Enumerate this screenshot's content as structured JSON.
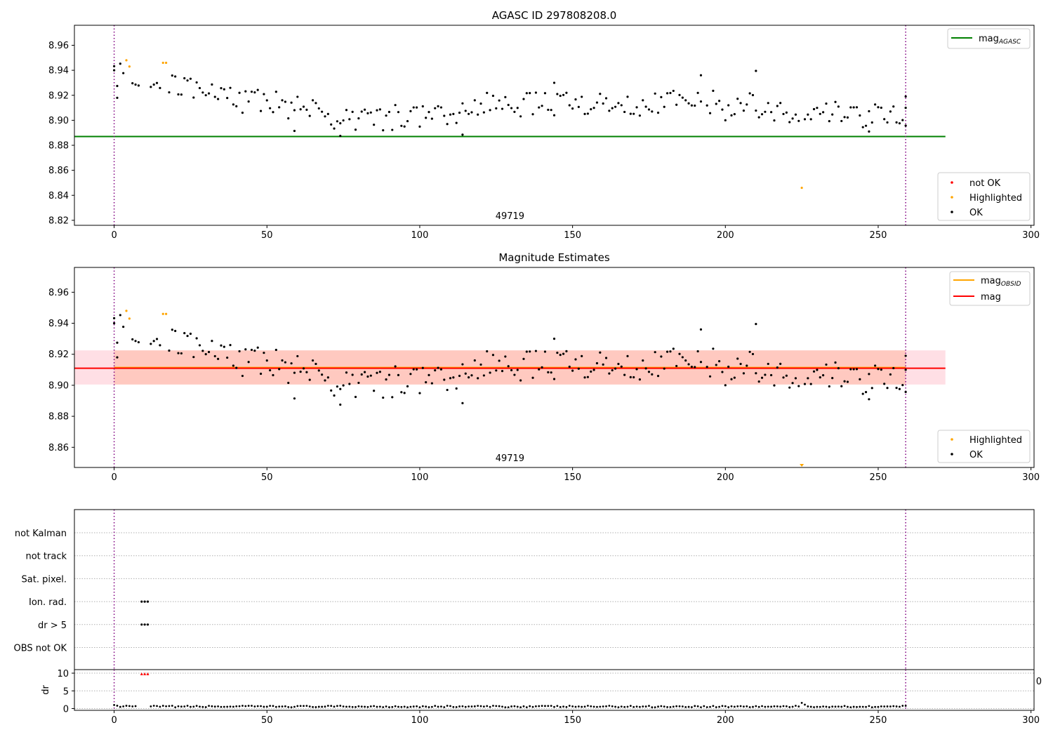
{
  "figure": {
    "title": "AGASC ID 297808208.0",
    "obsid_label": "49719",
    "cut_label": "0"
  },
  "colors": {
    "ok": "#000000",
    "highlighted": "#ffa500",
    "not_ok": "#ff0000",
    "mag_agasc": "#008000",
    "mag_obsid": "#ffa500",
    "mag": "#ff0000",
    "mag_band": "#ffc0cb",
    "obsid_band": "#ffa07a",
    "boundary": "#800080"
  },
  "chart_data": [
    {
      "type": "scatter",
      "panel": "agasc",
      "title": "AGASC ID 297808208.0",
      "xlim": [
        -13,
        301
      ],
      "ylim": [
        8.816,
        8.976
      ],
      "xticks": [
        0,
        50,
        100,
        150,
        200,
        250,
        300
      ],
      "yticks": [
        8.82,
        8.84,
        8.86,
        8.88,
        8.9,
        8.92,
        8.94,
        8.96
      ],
      "grid": false,
      "legend_lines": [
        {
          "label": "mag",
          "sub": "AGASC",
          "color": "#008000"
        }
      ],
      "legend_points": [
        {
          "label": "not OK",
          "color": "#ff0000"
        },
        {
          "label": "Highlighted",
          "color": "#ffa500"
        },
        {
          "label": "OK",
          "color": "#000000"
        }
      ],
      "mag_agasc": 8.887,
      "mag_agasc_x": [
        -13,
        272
      ],
      "obsid_boundaries": [
        0,
        259
      ],
      "obsid_label": "49719",
      "highlighted": [
        [
          4,
          8.948
        ],
        [
          5,
          8.943
        ],
        [
          16,
          8.946
        ],
        [
          17,
          8.946
        ],
        [
          225,
          8.846
        ]
      ]
    },
    {
      "type": "scatter",
      "panel": "estimates",
      "title": "Magnitude Estimates",
      "xlim": [
        -13,
        301
      ],
      "ylim": [
        8.847,
        8.976
      ],
      "xticks": [
        0,
        50,
        100,
        150,
        200,
        250,
        300
      ],
      "yticks": [
        8.86,
        8.88,
        8.9,
        8.92,
        8.94,
        8.96
      ],
      "grid": false,
      "legend_lines": [
        {
          "label": "mag",
          "sub": "OBSID",
          "color": "#ffa500"
        },
        {
          "label": "mag",
          "sub": "",
          "color": "#ff0000"
        }
      ],
      "legend_points": [
        {
          "label": "Highlighted",
          "color": "#ffa500"
        },
        {
          "label": "OK",
          "color": "#000000"
        }
      ],
      "mag": 8.911,
      "mag_band": [
        8.9005,
        8.9225
      ],
      "mag_band_x": [
        -13,
        272
      ],
      "mag_obsid": 8.911,
      "obsid_band": [
        8.9005,
        8.9225
      ],
      "obsid_band_x": [
        0,
        259
      ],
      "obsid_boundaries": [
        0,
        259
      ],
      "obsid_label": "49719",
      "highlighted": [
        [
          4,
          8.948
        ],
        [
          5,
          8.943
        ],
        [
          16,
          8.946
        ],
        [
          17,
          8.946
        ]
      ],
      "offscale_marker_x": 225
    },
    {
      "type": "scatter",
      "panel": "flags",
      "xlim": [
        -13,
        301
      ],
      "categories": [
        "not Kalman",
        "not track",
        "Sat. pixel.",
        "Ion. rad.",
        "dr > 5",
        "OBS not OK"
      ],
      "flagged": {
        "Ion. rad.": [
          9,
          10,
          11
        ],
        "dr > 5": [
          9,
          10,
          11
        ]
      },
      "grid": true,
      "obsid_boundaries": [
        0,
        259
      ]
    },
    {
      "type": "scatter",
      "panel": "dr",
      "ylabel": "dr",
      "xlim": [
        -13,
        301
      ],
      "ylim": [
        -0.5,
        11
      ],
      "xticks": [
        0,
        50,
        100,
        150,
        200,
        250,
        300
      ],
      "yticks": [
        0,
        5,
        10
      ],
      "grid": true,
      "clipped_x": [
        9,
        10,
        11
      ],
      "clipped_y": 10,
      "obsid_boundaries": [
        0,
        259
      ]
    }
  ]
}
